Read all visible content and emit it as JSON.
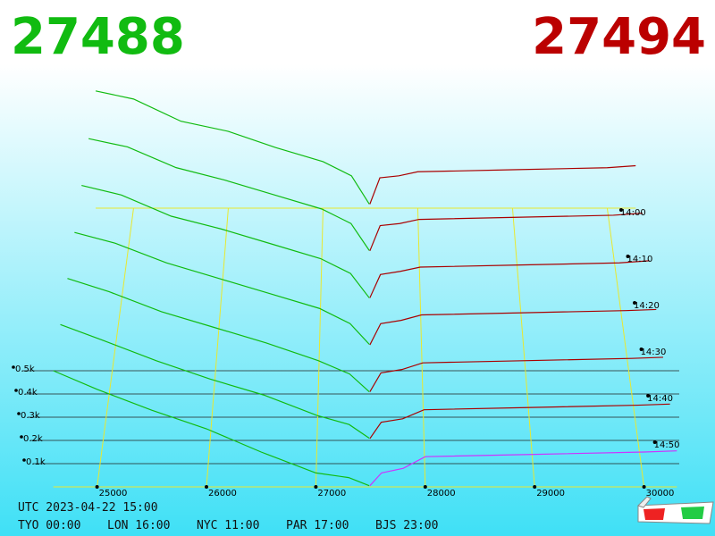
{
  "header": {
    "bid": "27488",
    "ask": "27494"
  },
  "chart_data": {
    "type": "depth3d",
    "bid_color": "#11bb11",
    "ask_color": "#aa0000",
    "front_ask_color": "#cc33ff",
    "price_ticks": [
      25000,
      26000,
      27000,
      28000,
      29000,
      30000
    ],
    "depth_ticks": [
      {
        "value": 100,
        "label": "0.1k"
      },
      {
        "value": 200,
        "label": "0.2k"
      },
      {
        "value": 300,
        "label": "0.3k"
      },
      {
        "value": 400,
        "label": "0.4k"
      },
      {
        "value": 500,
        "label": "0.5k"
      }
    ],
    "time_ticks": [
      "14:00",
      "14:10",
      "14:20",
      "14:30",
      "14:40",
      "14:50"
    ],
    "bid_prices": [
      27488,
      27300,
      27000,
      26500,
      26000,
      25500,
      25000,
      24600
    ],
    "ask_prices": [
      27494,
      27600,
      27800,
      28000,
      29000,
      30000,
      30300
    ],
    "snapshots": [
      {
        "bids": [
          20,
          160,
          230,
          300,
          380,
          430,
          540,
          580
        ],
        "asks": [
          20,
          150,
          160,
          180,
          190,
          200,
          210
        ]
      },
      {
        "bids": [
          20,
          150,
          220,
          290,
          360,
          420,
          520,
          560
        ],
        "asks": [
          18,
          140,
          150,
          170,
          180,
          190,
          200
        ]
      },
      {
        "bids": [
          15,
          130,
          200,
          270,
          340,
          400,
          500,
          545
        ],
        "asks": [
          15,
          125,
          140,
          160,
          170,
          180,
          190
        ]
      },
      {
        "bids": [
          15,
          110,
          180,
          250,
          320,
          390,
          480,
          530
        ],
        "asks": [
          12,
          110,
          125,
          150,
          160,
          170,
          175
        ]
      },
      {
        "bids": [
          10,
          90,
          150,
          230,
          300,
          370,
          460,
          520
        ],
        "asks": [
          10,
          95,
          110,
          140,
          150,
          160,
          165
        ]
      },
      {
        "bids": [
          10,
          70,
          110,
          200,
          270,
          350,
          440,
          510
        ],
        "asks": [
          8,
          80,
          95,
          135,
          145,
          155,
          160
        ]
      },
      {
        "bids": [
          5,
          40,
          60,
          150,
          250,
          330,
          420,
          500
        ],
        "asks": [
          5,
          60,
          80,
          130,
          140,
          150,
          155
        ]
      }
    ]
  },
  "footer": {
    "utc": "UTC 2023-04-22 15:00",
    "clocks": [
      "TYO 00:00",
      "LON 16:00",
      "NYC 11:00",
      "PAR 17:00",
      "BJS 23:00"
    ]
  }
}
